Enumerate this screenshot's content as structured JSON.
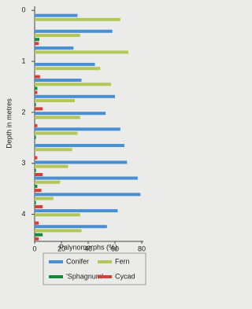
{
  "chart_data": {
    "type": "bar",
    "orientation": "horizontal",
    "y_reversed": true,
    "xlabel": "Palynomorphs (%)",
    "ylabel": "Depth in metres",
    "x": [
      0.22,
      0.53,
      0.86,
      1.18,
      1.49,
      1.81,
      2.14,
      2.45,
      2.77,
      3.1,
      3.41,
      3.73,
      4.05,
      4.36
    ],
    "series": [
      {
        "name": "Conifer",
        "color": "#4a8fd2",
        "values": [
          32,
          58,
          29,
          45,
          35,
          60,
          53,
          64,
          67,
          69,
          77,
          79,
          62,
          54
        ]
      },
      {
        "name": "Fern",
        "color": "#b3c65a",
        "values": [
          64,
          34,
          70,
          49,
          57,
          30,
          34,
          32,
          28,
          25,
          19,
          14,
          34,
          35
        ]
      },
      {
        "name": "'Sphagnum'",
        "color": "#178a3c",
        "values": [
          0,
          3.5,
          0,
          0,
          2,
          1,
          0,
          1,
          0,
          1,
          2,
          1,
          0,
          6
        ]
      },
      {
        "name": "Cycad",
        "color": "#d2403a",
        "values": [
          0,
          3,
          0,
          4,
          2,
          6,
          2,
          0,
          2,
          6,
          5,
          6,
          3,
          3
        ]
      }
    ],
    "xlim": [
      0,
      80
    ],
    "xticks": [
      0,
      20,
      40,
      60,
      80
    ],
    "ylim": [
      -0.08,
      4.53
    ],
    "yticks": [
      0,
      1,
      2,
      3,
      4
    ],
    "legend": "bottom"
  }
}
